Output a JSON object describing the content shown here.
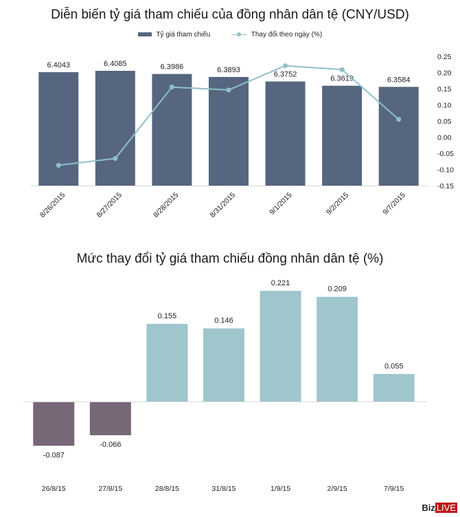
{
  "chart_data": [
    {
      "type": "bar+line",
      "title": "Diễn biến tỷ giá tham chiếu của đồng nhân dân tệ (CNY/USD)",
      "categories": [
        "8/26/2015",
        "8/27/2015",
        "8/28/2015",
        "8/31/2015",
        "9/1/2015",
        "9/2/2015",
        "9/7/2015"
      ],
      "series": [
        {
          "name": "Tỷ giá tham chiếu",
          "type": "bar",
          "axis": "primary",
          "color": "#56667f",
          "values": [
            6.4043,
            6.4085,
            6.3986,
            6.3893,
            6.3752,
            6.3619,
            6.3584
          ],
          "labels": [
            "6.4043",
            "6.4085",
            "6.3986",
            "6.3893",
            "6.3752",
            "6.3619",
            "6.3584"
          ]
        },
        {
          "name": "Thay đổi theo ngày (%)",
          "type": "line",
          "axis": "secondary",
          "color": "#8fc0c8",
          "values": [
            -0.087,
            -0.066,
            0.155,
            0.146,
            0.221,
            0.209,
            0.055
          ]
        }
      ],
      "y2lim": [
        -0.15,
        0.25
      ],
      "y2ticks": [
        "0.25",
        "0.20",
        "0.15",
        "0.10",
        "0.05",
        "0.00",
        "-0.05",
        "-0.10",
        "-0.15"
      ],
      "legend": "top-center",
      "grid": false
    },
    {
      "type": "bar",
      "title": "Mức thay đổi tỷ giá tham chiếu đồng nhân dân tệ (%)",
      "categories": [
        "26/8/15",
        "27/8/15",
        "28/8/15",
        "31/8/15",
        "1/9/15",
        "2/9/15",
        "7/9/15"
      ],
      "values": [
        -0.087,
        -0.066,
        0.155,
        0.146,
        0.221,
        0.209,
        0.055
      ],
      "labels": [
        "-0.087",
        "-0.066",
        "0.155",
        "0.146",
        "0.221",
        "0.209",
        "0.055"
      ],
      "colors": {
        "positive": "#9fc6cd",
        "negative": "#776878"
      },
      "grid": false
    }
  ],
  "brand": {
    "biz": "Biz",
    "live": "LIVE"
  }
}
